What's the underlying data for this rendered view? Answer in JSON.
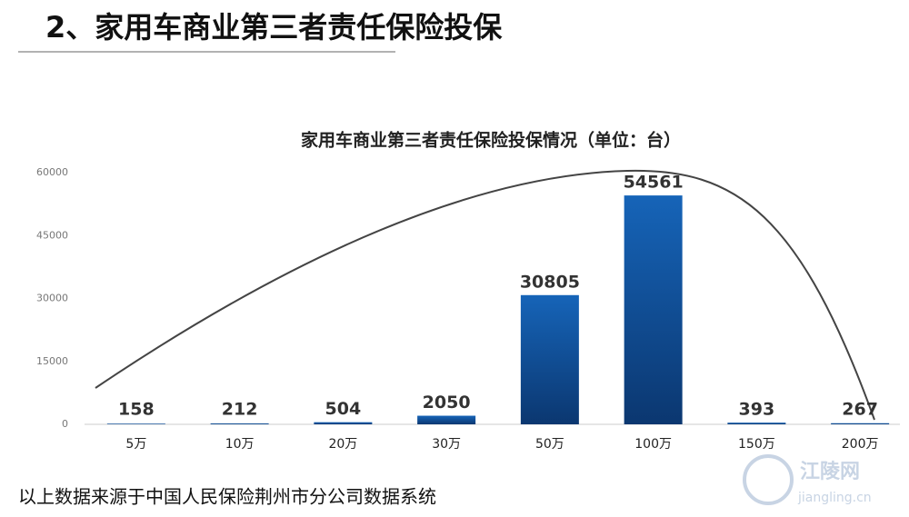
{
  "heading": "2、家用车商业第三者责任保险投保",
  "chart_data": {
    "type": "bar",
    "title": "家用车商业第三者责任保险投保情况（单位：台）",
    "categories": [
      "5万",
      "10万",
      "20万",
      "30万",
      "50万",
      "100万",
      "150万",
      "200万"
    ],
    "values": [
      158,
      212,
      504,
      2050,
      30805,
      54561,
      393,
      267
    ],
    "color": "#1664b8",
    "ylim": [
      0,
      60000
    ],
    "yticks": [
      0,
      15000,
      30000,
      45000,
      60000
    ],
    "grid": false
  },
  "footer": "以上数据来源于中国人民保险荆州市分公司数据系统",
  "watermark": {
    "name": "江陵网",
    "url": "jiangling.cn"
  }
}
